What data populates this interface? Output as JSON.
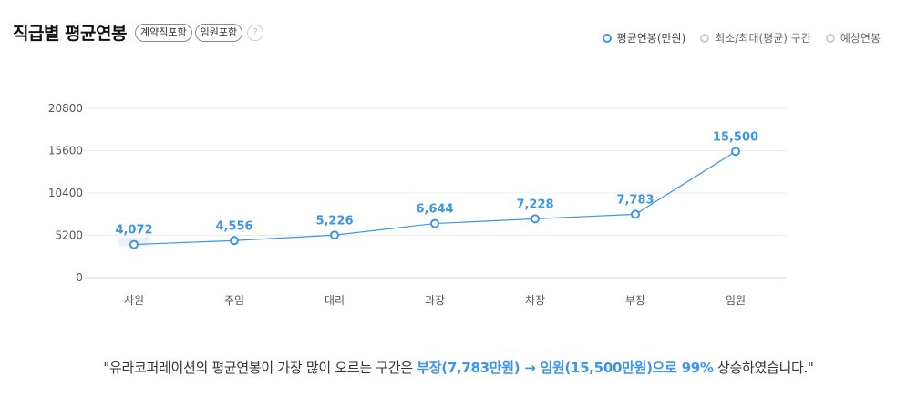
{
  "header": {
    "title": "직급별 평균연봉",
    "badges": [
      "계약직포함",
      "임원포함"
    ],
    "help_glyph": "?"
  },
  "legend": {
    "items": [
      "평균연봉(만원)",
      "최소/최대(평균) 구간",
      "예상연봉"
    ]
  },
  "chart_data": {
    "type": "line",
    "categories": [
      "사원",
      "주임",
      "대리",
      "과장",
      "차장",
      "부장",
      "임원"
    ],
    "series": [
      {
        "name": "평균연봉(만원)",
        "values": [
          4072,
          4556,
          5226,
          6644,
          7228,
          7783,
          15500
        ]
      }
    ],
    "value_labels": [
      "4,072",
      "4,556",
      "5,226",
      "6,644",
      "7,228",
      "7,783",
      "15,500"
    ],
    "yticks": [
      0,
      5200,
      10400,
      15600,
      20800
    ],
    "ylim": [
      0,
      20800
    ],
    "grid": true,
    "legend_placement": "top-right",
    "line_color": "#3d94e8",
    "label_color": "#3d94e8"
  },
  "summary": {
    "prefix": "\"유라코퍼레이션의 평균연봉이 가장 많이 오르는 구간은 ",
    "highlight_range": "부장(7,783만원) → 임원(15,500만원)으로 99%",
    "suffix": " 상승하였습니다.\""
  }
}
